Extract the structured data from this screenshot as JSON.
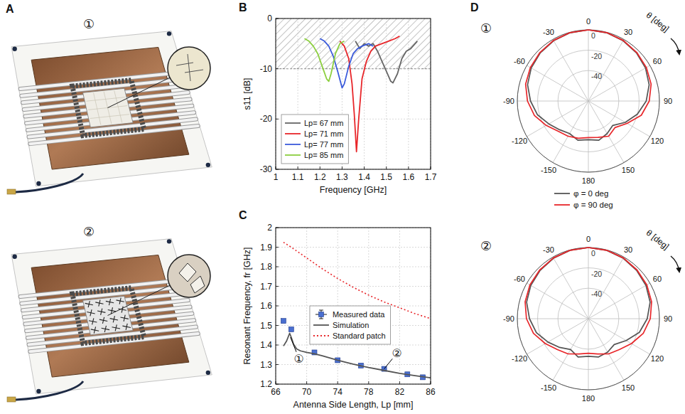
{
  "panel_labels": [
    "A",
    "B",
    "C",
    "D"
  ],
  "photos": [
    {
      "label": "①"
    },
    {
      "label": "②"
    }
  ],
  "chart_data": [
    {
      "type": "line",
      "x_label": "Frequency [GHz]",
      "y_label": "s11 [dB]",
      "xlim": [
        1,
        1.7
      ],
      "xticks": [
        1,
        1.1,
        1.2,
        1.3,
        1.4,
        1.5,
        1.6,
        1.7
      ],
      "ylim": [
        -30,
        0
      ],
      "yticks": [
        -30,
        -20,
        -10,
        0
      ],
      "grid": true,
      "legend": "lower left",
      "hatched_above": -10,
      "series": [
        {
          "name": "Lp= 67 mm",
          "color": "#666666",
          "x": [
            1.36,
            1.38,
            1.4,
            1.42,
            1.44,
            1.46,
            1.48,
            1.5,
            1.52,
            1.53,
            1.55,
            1.57,
            1.59,
            1.61,
            1.63,
            1.64
          ],
          "values": [
            -4.5,
            -6,
            -5,
            -5.5,
            -5,
            -6.5,
            -8.5,
            -10.5,
            -12.5,
            -12.8,
            -11,
            -8,
            -6.5,
            -6,
            -5,
            -4.5
          ]
        },
        {
          "name": "Lp= 71 mm",
          "color": "#e8262a",
          "x": [
            1.29,
            1.31,
            1.33,
            1.345,
            1.355,
            1.365,
            1.375,
            1.39,
            1.41,
            1.43,
            1.45,
            1.48,
            1.51,
            1.54,
            1.56
          ],
          "values": [
            -4.5,
            -5.5,
            -8,
            -13,
            -19,
            -26.5,
            -20,
            -12,
            -8.5,
            -6.5,
            -5.5,
            -5,
            -4.5,
            -4,
            -3.5
          ]
        },
        {
          "name": "Lp= 77 mm",
          "color": "#3b5bdb",
          "x": [
            1.2,
            1.22,
            1.24,
            1.26,
            1.28,
            1.3,
            1.31,
            1.33,
            1.35,
            1.37,
            1.39,
            1.42,
            1.44
          ],
          "values": [
            -4,
            -4.5,
            -5.5,
            -7.5,
            -10.5,
            -13.8,
            -13,
            -9.5,
            -7,
            -6,
            -5.5,
            -5,
            -5.5
          ]
        },
        {
          "name": "Lp= 85 mm",
          "color": "#8ccf3f",
          "x": [
            1.13,
            1.15,
            1.17,
            1.19,
            1.21,
            1.23,
            1.24,
            1.25,
            1.27,
            1.29,
            1.31
          ],
          "values": [
            -4,
            -4.5,
            -5.5,
            -7,
            -9.5,
            -12,
            -12.5,
            -11,
            -7,
            -5,
            -4.5
          ]
        }
      ]
    },
    {
      "type": "line",
      "x_label": "Antenna Side Length, Lp [mm]",
      "y_label": "Resonant Frequency, fr [GHz]",
      "xlim": [
        66,
        86
      ],
      "xticks": [
        66,
        70,
        74,
        78,
        82,
        86
      ],
      "ylim": [
        1.2,
        2
      ],
      "yticks": [
        1.2,
        1.3,
        1.4,
        1.5,
        1.6,
        1.7,
        1.8,
        1.9,
        2
      ],
      "grid": true,
      "legend": "center",
      "series": [
        {
          "name": "Measured data",
          "type": "scatter",
          "marker": "square",
          "color": "#4a6fd0",
          "x": [
            67,
            68,
            71,
            74,
            77,
            80,
            83,
            85
          ],
          "values": [
            1.523,
            1.48,
            1.362,
            1.322,
            1.295,
            1.278,
            1.25,
            1.235
          ],
          "errors": [
            0.006,
            0.006,
            0.005,
            0.005,
            0.005,
            0.005,
            0.005,
            0.006
          ]
        },
        {
          "name": "Simulation",
          "type": "line",
          "line_style": "solid",
          "color": "#555555",
          "x": [
            67,
            67.4,
            67.8,
            68,
            68.3,
            68.7,
            69.2,
            70,
            71,
            72,
            74,
            76,
            78,
            80,
            82,
            84,
            86
          ],
          "values": [
            1.395,
            1.42,
            1.46,
            1.44,
            1.405,
            1.38,
            1.37,
            1.362,
            1.355,
            1.345,
            1.322,
            1.302,
            1.285,
            1.27,
            1.255,
            1.243,
            1.232
          ]
        },
        {
          "name": "Standard patch",
          "type": "line",
          "line_style": "dotted",
          "color": "#e8262a",
          "x": [
            67,
            68,
            70,
            72,
            74,
            76,
            78,
            80,
            82,
            84,
            86
          ],
          "values": [
            1.925,
            1.9,
            1.845,
            1.79,
            1.74,
            1.695,
            1.655,
            1.62,
            1.59,
            1.56,
            1.535
          ]
        }
      ],
      "annotations": [
        {
          "text": "①",
          "x": 67.9,
          "y": 1.44
        },
        {
          "text": "②",
          "x": 80,
          "y": 1.278
        }
      ]
    },
    {
      "type": "polar",
      "label": "①",
      "theta_label": "θ [deg]",
      "theta": [
        -180,
        -165,
        -150,
        -135,
        -120,
        -105,
        -90,
        -75,
        -60,
        -45,
        -30,
        -15,
        0,
        15,
        30,
        45,
        60,
        75,
        90,
        105,
        120,
        135,
        150,
        165,
        180
      ],
      "thetaticks": [
        -150,
        -120,
        -90,
        -60,
        -30,
        0,
        30,
        60,
        90,
        120,
        150,
        180
      ],
      "rlim": [
        -70,
        0
      ],
      "rticks": [
        -40,
        -20,
        0
      ],
      "grid": true,
      "legend": "below",
      "series": [
        {
          "name": "φ = 0 deg",
          "color": "#555555",
          "values": [
            -32,
            -30,
            -33,
            -30,
            -25,
            -18,
            -13,
            -8,
            -5,
            -3,
            -1.5,
            -0.5,
            0,
            -0.5,
            -1.5,
            -3,
            -5,
            -8,
            -13,
            -20,
            -28,
            -36,
            -33,
            -30,
            -32
          ]
        },
        {
          "name": "φ = 90 deg",
          "color": "#e8262a",
          "values": [
            -34,
            -32,
            -30,
            -28,
            -22,
            -15,
            -10,
            -6,
            -4,
            -2.5,
            -1.2,
            -0.3,
            0,
            -0.3,
            -1.2,
            -2.5,
            -4,
            -6,
            -10,
            -16,
            -26,
            -33,
            -30,
            -33,
            -34
          ]
        }
      ]
    },
    {
      "type": "polar",
      "label": "②",
      "theta_label": "θ [deg]",
      "theta": [
        -180,
        -165,
        -150,
        -135,
        -120,
        -105,
        -90,
        -75,
        -60,
        -45,
        -30,
        -15,
        0,
        15,
        30,
        45,
        60,
        75,
        90,
        105,
        120,
        135,
        150,
        165,
        180
      ],
      "thetaticks": [
        -150,
        -120,
        -90,
        -60,
        -30,
        0,
        30,
        60,
        90,
        120,
        150,
        180
      ],
      "rlim": [
        -70,
        0
      ],
      "rticks": [
        -40,
        -20,
        0
      ],
      "grid": true,
      "series": [
        {
          "color": "#555555",
          "values": [
            -33,
            -31,
            -35,
            -30,
            -24,
            -17,
            -12,
            -7,
            -4.5,
            -2.8,
            -1.3,
            -0.4,
            0,
            -0.4,
            -1.3,
            -2.8,
            -4.5,
            -7,
            -12,
            -18,
            -27,
            -34,
            -32,
            -31,
            -33
          ]
        },
        {
          "color": "#e8262a",
          "values": [
            -36,
            -34,
            -30,
            -27,
            -21,
            -14,
            -9,
            -5.5,
            -3.5,
            -2.2,
            -1,
            -0.3,
            0,
            -0.3,
            -1,
            -2.2,
            -3.5,
            -5.5,
            -9,
            -14,
            -21,
            -27,
            -30,
            -34,
            -36
          ]
        }
      ]
    }
  ]
}
